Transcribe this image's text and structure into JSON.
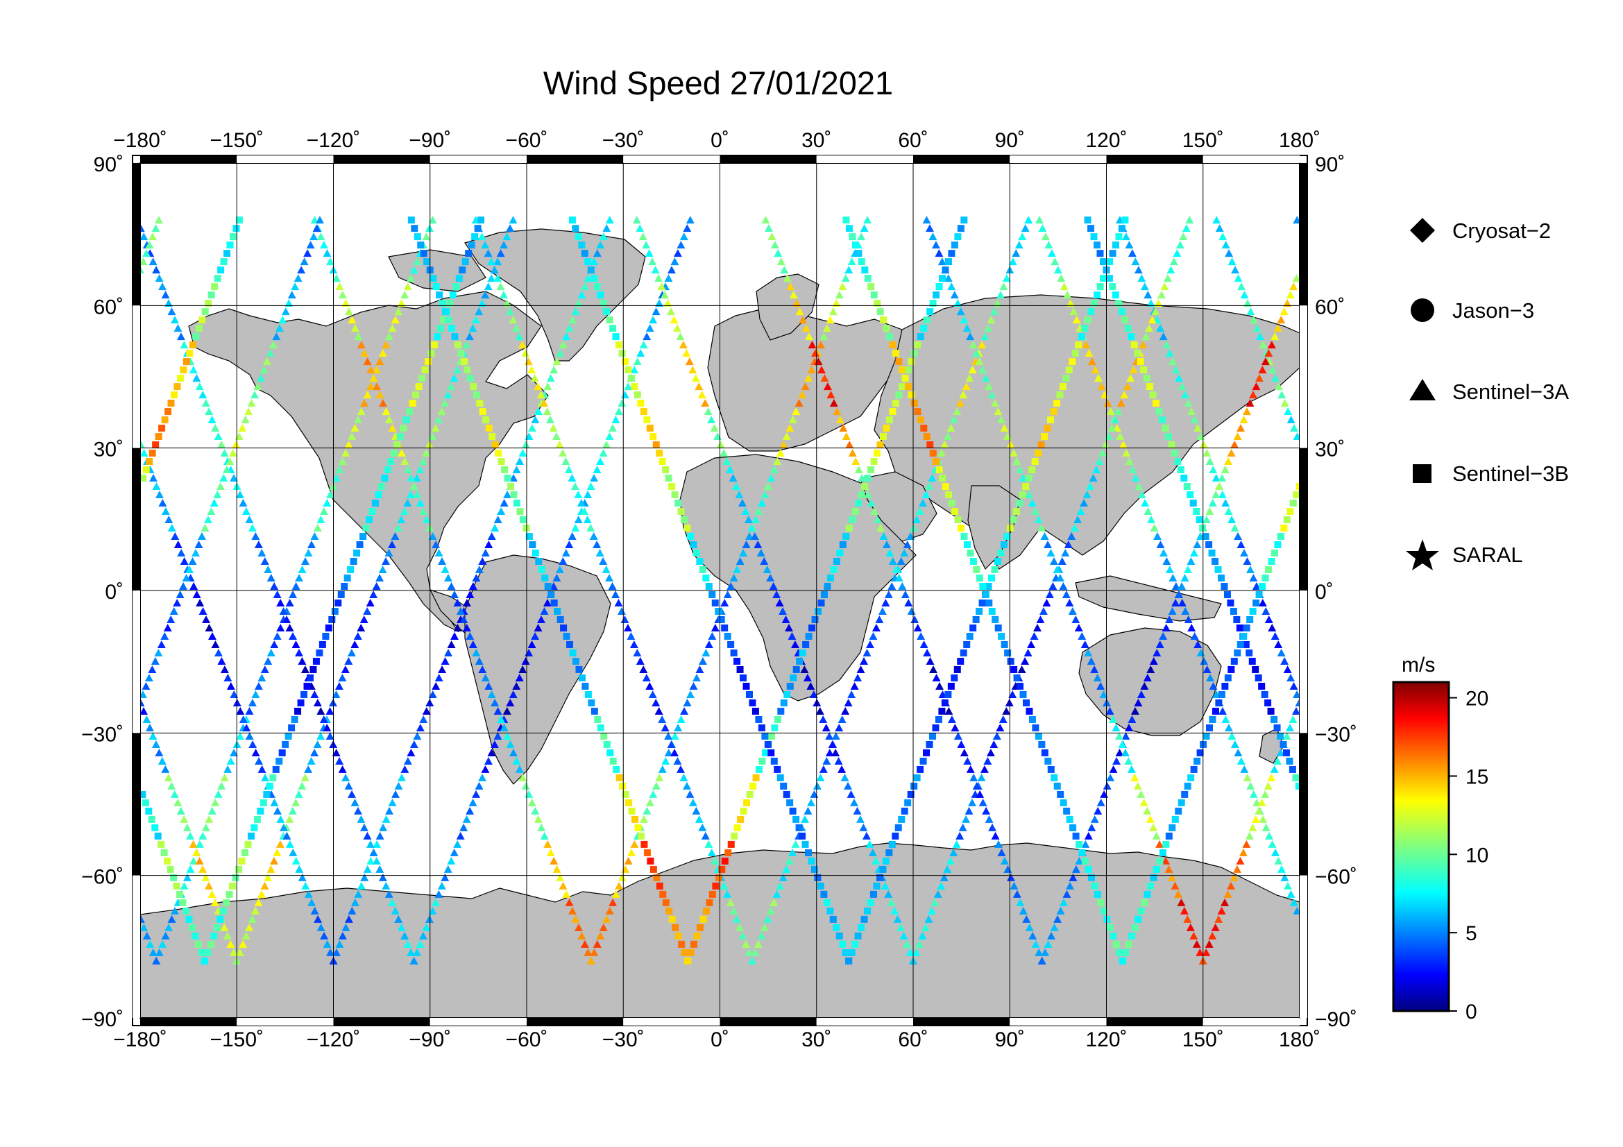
{
  "title": "Wind Speed 27/01/2021",
  "map": {
    "lon_range": [
      -180,
      180
    ],
    "lat_range": [
      -90,
      90
    ],
    "lon_ticks": [
      "−180˚",
      "−150˚",
      "−120˚",
      "−90˚",
      "−60˚",
      "−30˚",
      "0˚",
      "30˚",
      "60˚",
      "90˚",
      "120˚",
      "150˚",
      "180˚"
    ],
    "lat_ticks_left": [
      "90˚",
      "60˚",
      "30˚",
      "0˚",
      "−30˚",
      "−60˚",
      "−90˚"
    ],
    "lat_ticks_right": [
      "90˚",
      "60˚",
      "30˚",
      "0˚",
      "−30˚",
      "−60˚",
      "−90˚"
    ],
    "land_color": "#bebebe",
    "ocean_color": "#ffffff",
    "grid": true
  },
  "legend": {
    "items": [
      {
        "label": "Cryosat−2",
        "marker": "diamond"
      },
      {
        "label": "Jason−3",
        "marker": "circle"
      },
      {
        "label": "Sentinel−3A",
        "marker": "triangle"
      },
      {
        "label": "Sentinel−3B",
        "marker": "square"
      },
      {
        "label": "SARAL",
        "marker": "star"
      }
    ]
  },
  "colorbar": {
    "unit": "m/s",
    "ticks": [
      "20",
      "15",
      "10",
      "5",
      "0"
    ],
    "range": [
      0,
      21
    ],
    "colormap": "jet"
  },
  "chart_data": {
    "type": "scatter",
    "title": "Wind Speed 27/01/2021",
    "xlim": [
      -180,
      180
    ],
    "ylim": [
      -90,
      90
    ],
    "series": [
      {
        "name": "Sentinel-3A",
        "marker": "triangle",
        "tracks": [
          {
            "lon0": -175,
            "speed_profile": [
              6,
              8,
              10,
              7,
              5,
              4,
              6,
              9,
              12,
              14,
              12,
              9
            ]
          },
          {
            "lon0": -150,
            "speed_profile": [
              12,
              14,
              10,
              6,
              4,
              3,
              5,
              8,
              11,
              9,
              7,
              6
            ]
          },
          {
            "lon0": -120,
            "speed_profile": [
              5,
              7,
              6,
              4,
              3,
              2,
              4,
              6,
              8,
              10,
              9,
              7
            ]
          },
          {
            "lon0": -95,
            "speed_profile": [
              7,
              6,
              5,
              3,
              2,
              3,
              5,
              7,
              9,
              8,
              6,
              5
            ]
          },
          {
            "lon0": -40,
            "speed_profile": [
              16,
              14,
              10,
              7,
              5,
              4,
              6,
              9,
              13,
              15,
              12,
              8
            ]
          },
          {
            "lon0": 10,
            "speed_profile": [
              10,
              8,
              6,
              4,
              3,
              4,
              6,
              8,
              11,
              13,
              10,
              7
            ]
          },
          {
            "lon0": 60,
            "speed_profile": [
              8,
              7,
              5,
              3,
              2,
              3,
              5,
              7,
              10,
              14,
              12,
              9
            ]
          },
          {
            "lon0": 100,
            "speed_profile": [
              6,
              5,
              4,
              3,
              2,
              4,
              7,
              10,
              15,
              18,
              14,
              10
            ]
          },
          {
            "lon0": 150,
            "speed_profile": [
              18,
              16,
              12,
              8,
              5,
              4,
              6,
              9,
              12,
              10,
              7,
              5
            ]
          }
        ]
      },
      {
        "name": "Sentinel-3B",
        "marker": "square",
        "tracks": [
          {
            "lon0": -160,
            "speed_profile": [
              9,
              11,
              8,
              5,
              3,
              4,
              6,
              8,
              10,
              12,
              9,
              6
            ]
          },
          {
            "lon0": -10,
            "speed_profile": [
              15,
              17,
              13,
              9,
              6,
              5,
              7,
              10,
              13,
              11,
              8,
              6
            ]
          },
          {
            "lon0": 40,
            "speed_profile": [
              7,
              6,
              5,
              4,
              3,
              5,
              8,
              11,
              14,
              12,
              9,
              7
            ]
          },
          {
            "lon0": 125,
            "speed_profile": [
              9,
              8,
              6,
              5,
              4,
              6,
              9,
              12,
              16,
              14,
              11,
              8
            ]
          }
        ]
      }
    ]
  }
}
